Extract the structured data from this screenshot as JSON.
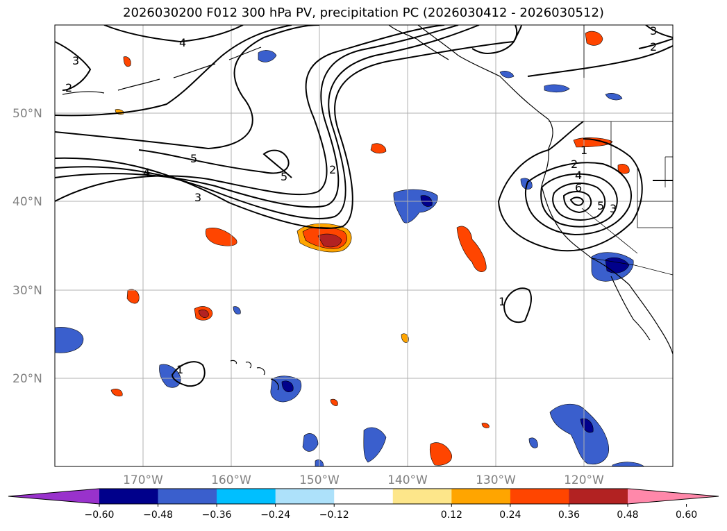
{
  "title": "2026030200 F012 300 hPa PV, precipitation PC (2026030412 - 2026030512)",
  "axes": {
    "lat_labels": [
      "50°N",
      "40°N",
      "30°N",
      "20°N"
    ],
    "lon_labels": [
      "170°W",
      "160°W",
      "150°W",
      "140°W",
      "130°W",
      "120°W"
    ]
  },
  "colorbar": {
    "ticks": [
      "−0.60",
      "−0.48",
      "−0.36",
      "−0.24",
      "−0.12",
      "0.12",
      "0.24",
      "0.36",
      "0.48",
      "0.60"
    ],
    "colors": [
      "#9932cc",
      "#00008b",
      "#3a5fcd",
      "#00bfff",
      "#ade1fa",
      "#ffffff",
      "#fde68a",
      "#ffa500",
      "#ff4500",
      "#b22222",
      "#ff88aa"
    ]
  },
  "contour_labels": [
    "4",
    "3",
    "2",
    "5",
    "5",
    "4",
    "3",
    "2",
    "1",
    "2",
    "4",
    "6",
    "5",
    "3",
    "1",
    "1",
    "3",
    "2"
  ]
}
